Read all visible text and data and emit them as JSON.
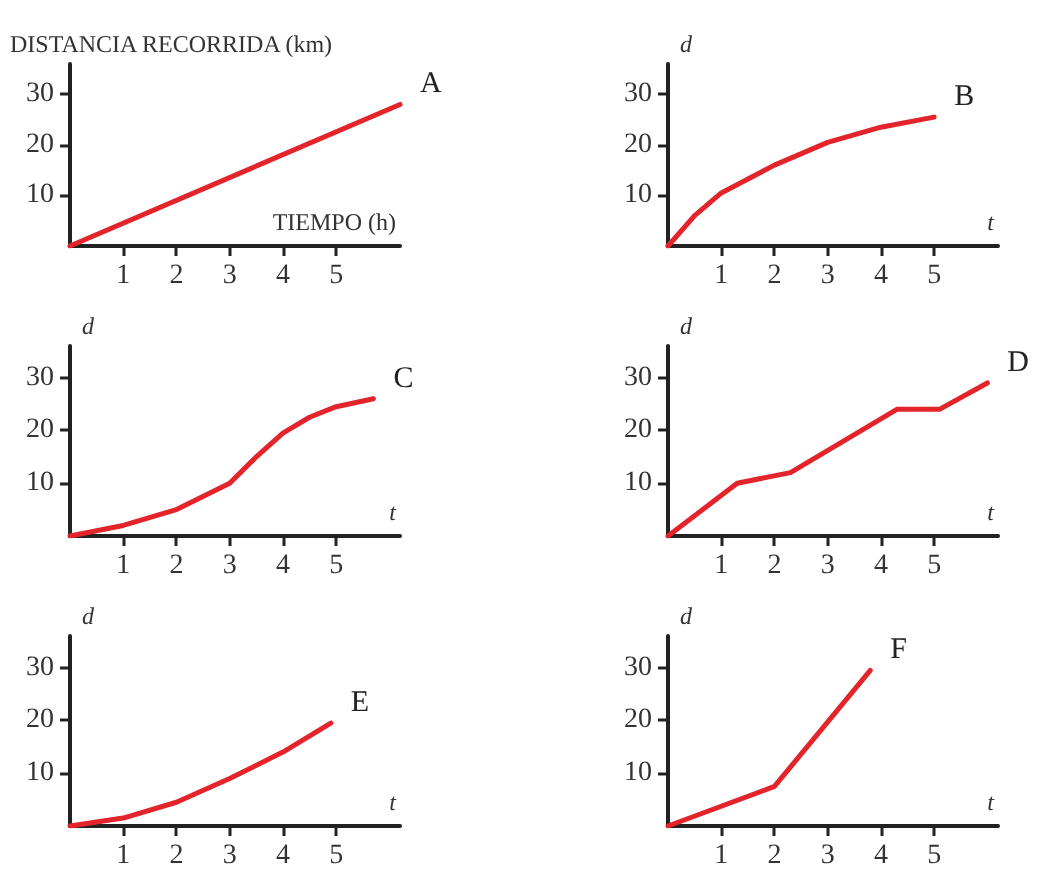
{
  "chart_data": [
    {
      "type": "line",
      "xlabel": "TIEMPO (h)",
      "ylabel": "DISTANCIA RECORRIDA (km)",
      "xlim": [
        0,
        6.2
      ],
      "ylim": [
        0,
        36
      ],
      "xticks": [
        1,
        2,
        3,
        4,
        5
      ],
      "yticks": [
        10,
        20,
        30
      ],
      "grid": false,
      "legend": false,
      "marker": "none",
      "line_style": "solid",
      "series": [
        {
          "name": "A",
          "color": "#e3242b",
          "x": [
            0,
            6.2
          ],
          "values": [
            0,
            28
          ]
        }
      ]
    },
    {
      "type": "line",
      "xlabel": "t",
      "ylabel": "d",
      "xlim": [
        0,
        6.2
      ],
      "ylim": [
        0,
        36
      ],
      "xticks": [
        1,
        2,
        3,
        4,
        5
      ],
      "yticks": [
        10,
        20,
        30
      ],
      "grid": false,
      "legend": false,
      "marker": "none",
      "line_style": "solid",
      "series": [
        {
          "name": "B",
          "color": "#e3242b",
          "x": [
            0,
            0.5,
            1,
            2,
            3,
            4,
            5
          ],
          "values": [
            0,
            6,
            10.5,
            16,
            20.5,
            23.5,
            25.5
          ]
        }
      ]
    },
    {
      "type": "line",
      "xlabel": "t",
      "ylabel": "d",
      "xlim": [
        0,
        6.2
      ],
      "ylim": [
        0,
        36
      ],
      "xticks": [
        1,
        2,
        3,
        4,
        5
      ],
      "yticks": [
        10,
        20,
        30
      ],
      "grid": false,
      "legend": false,
      "marker": "none",
      "line_style": "solid",
      "series": [
        {
          "name": "C",
          "color": "#e3242b",
          "x": [
            0,
            1,
            2,
            3,
            3.5,
            4,
            4.5,
            5,
            5.7
          ],
          "values": [
            0,
            2,
            5,
            10,
            15,
            19.5,
            22.5,
            24.5,
            26
          ]
        }
      ]
    },
    {
      "type": "line",
      "xlabel": "t",
      "ylabel": "d",
      "xlim": [
        0,
        6.2
      ],
      "ylim": [
        0,
        36
      ],
      "xticks": [
        1,
        2,
        3,
        4,
        5
      ],
      "yticks": [
        10,
        20,
        30
      ],
      "grid": false,
      "legend": false,
      "marker": "none",
      "line_style": "solid",
      "series": [
        {
          "name": "D",
          "color": "#e3242b",
          "x": [
            0,
            1.3,
            2.3,
            4.3,
            5.1,
            6
          ],
          "values": [
            0,
            10,
            12,
            24,
            24,
            29
          ]
        }
      ]
    },
    {
      "type": "line",
      "xlabel": "t",
      "ylabel": "d",
      "xlim": [
        0,
        6.2
      ],
      "ylim": [
        0,
        36
      ],
      "xticks": [
        1,
        2,
        3,
        4,
        5
      ],
      "yticks": [
        10,
        20,
        30
      ],
      "grid": false,
      "legend": false,
      "marker": "none",
      "line_style": "solid",
      "series": [
        {
          "name": "E",
          "color": "#e3242b",
          "x": [
            0,
            1,
            2,
            3,
            4,
            4.9
          ],
          "values": [
            0,
            1.5,
            4.5,
            9,
            14,
            19.5
          ]
        }
      ]
    },
    {
      "type": "line",
      "xlabel": "t",
      "ylabel": "d",
      "xlim": [
        0,
        6.2
      ],
      "ylim": [
        0,
        36
      ],
      "xticks": [
        1,
        2,
        3,
        4,
        5
      ],
      "yticks": [
        10,
        20,
        30
      ],
      "grid": false,
      "legend": false,
      "marker": "none",
      "line_style": "solid",
      "series": [
        {
          "name": "F",
          "color": "#e3242b",
          "x": [
            0,
            2,
            3.8
          ],
          "values": [
            0,
            7.5,
            29.5
          ]
        }
      ]
    }
  ]
}
